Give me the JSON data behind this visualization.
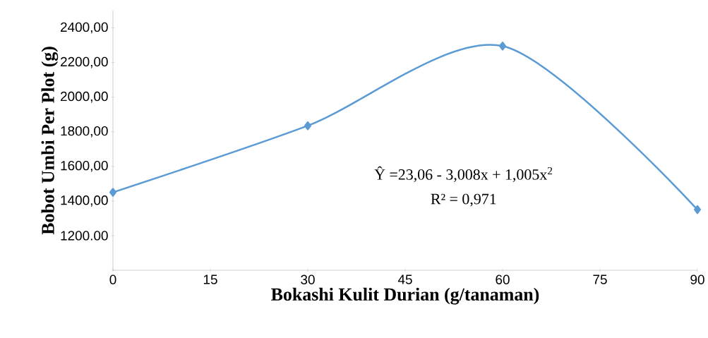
{
  "chart_data": {
    "type": "line",
    "xlabel": "Bokashi Kulit Durian (g/tanaman)",
    "ylabel": "Bobot Umbi Per Plot (g)",
    "x": [
      0,
      30,
      60,
      90
    ],
    "values": [
      1450,
      1835,
      2295,
      1350
    ],
    "color": "#5b9bd5",
    "marker": "diamond",
    "xlim": [
      0,
      90
    ],
    "xticks": [
      0,
      15,
      30,
      45,
      60,
      75,
      90
    ],
    "ylim": [
      1000,
      2500
    ],
    "yticks": [
      {
        "value": 1000,
        "label": null
      },
      {
        "value": 1200,
        "label": "1200.00"
      },
      {
        "value": 1400,
        "label": "1400,00"
      },
      {
        "value": 1600,
        "label": "1600,00"
      },
      {
        "value": 1800,
        "label": "1800,00"
      },
      {
        "value": 2000,
        "label": "2000,00"
      },
      {
        "value": 2200,
        "label": "2200,00"
      },
      {
        "value": 2400,
        "label": "2400,00"
      }
    ],
    "annotations": [
      "Ŷ =23,06 - 3,008x + 1,005x$^{2}$",
      "R² = 0,971"
    ]
  }
}
